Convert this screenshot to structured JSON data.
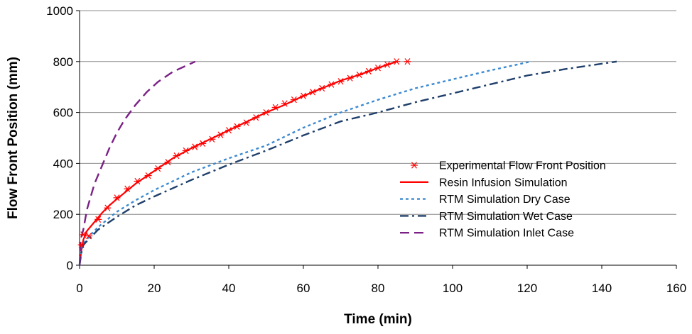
{
  "chart_data": {
    "type": "line",
    "xlabel": "Time (min)",
    "ylabel": "Flow Front Position (mm)",
    "xlim": [
      0,
      160
    ],
    "ylim": [
      0,
      1000
    ],
    "x_ticks": [
      0,
      20,
      40,
      60,
      80,
      100,
      120,
      140,
      160
    ],
    "y_ticks": [
      0,
      200,
      400,
      600,
      800,
      1000
    ],
    "y_grid": true,
    "legend_position": "right",
    "series": [
      {
        "name": "Experimental Flow Front Position",
        "style": "markers",
        "marker": "asterisk",
        "color": "#ff0000",
        "points": [
          [
            0.5,
            80
          ],
          [
            1.0,
            120
          ],
          [
            2.5,
            115
          ],
          [
            5.0,
            180
          ],
          [
            7.5,
            225
          ],
          [
            10.0,
            265
          ],
          [
            12.8,
            300
          ],
          [
            15.5,
            330
          ],
          [
            18.4,
            352
          ],
          [
            21.0,
            380
          ],
          [
            23.7,
            405
          ],
          [
            26.0,
            430
          ],
          [
            28.5,
            450
          ],
          [
            30.9,
            465
          ],
          [
            33.0,
            478
          ],
          [
            35.5,
            495
          ],
          [
            37.8,
            512
          ],
          [
            40.0,
            530
          ],
          [
            42.2,
            545
          ],
          [
            44.7,
            560
          ],
          [
            47.3,
            580
          ],
          [
            50.0,
            600
          ],
          [
            52.5,
            620
          ],
          [
            55.0,
            635
          ],
          [
            57.5,
            650
          ],
          [
            60.0,
            665
          ],
          [
            62.5,
            680
          ],
          [
            65.0,
            695
          ],
          [
            67.5,
            710
          ],
          [
            70.0,
            722
          ],
          [
            72.5,
            735
          ],
          [
            75.0,
            748
          ],
          [
            77.5,
            762
          ],
          [
            80.0,
            775
          ],
          [
            82.5,
            788
          ],
          [
            85.0,
            800
          ],
          [
            87.9,
            800
          ]
        ]
      },
      {
        "name": "Resin Infusion Simulation",
        "style": "solid",
        "color": "#ff0000",
        "points": [
          [
            0,
            0
          ],
          [
            0.5,
            60
          ],
          [
            1,
            100
          ],
          [
            2,
            135
          ],
          [
            4,
            170
          ],
          [
            6,
            205
          ],
          [
            8,
            235
          ],
          [
            10,
            260
          ],
          [
            15,
            320
          ],
          [
            20,
            370
          ],
          [
            25,
            420
          ],
          [
            30,
            460
          ],
          [
            35,
            495
          ],
          [
            40,
            530
          ],
          [
            45,
            565
          ],
          [
            50,
            600
          ],
          [
            55,
            630
          ],
          [
            60,
            665
          ],
          [
            65,
            695
          ],
          [
            70,
            725
          ],
          [
            75,
            748
          ],
          [
            80,
            775
          ],
          [
            85,
            800
          ]
        ]
      },
      {
        "name": "RTM Simulation Dry Case",
        "style": "dotted",
        "color": "#3c8ad0",
        "points": [
          [
            0,
            0
          ],
          [
            0.5,
            55
          ],
          [
            1,
            85
          ],
          [
            3,
            120
          ],
          [
            5,
            150
          ],
          [
            10,
            210
          ],
          [
            15,
            255
          ],
          [
            20,
            295
          ],
          [
            30,
            365
          ],
          [
            40,
            420
          ],
          [
            50,
            470
          ],
          [
            60,
            540
          ],
          [
            70,
            600
          ],
          [
            80,
            650
          ],
          [
            90,
            695
          ],
          [
            100,
            730
          ],
          [
            110,
            765
          ],
          [
            121,
            800
          ]
        ]
      },
      {
        "name": "RTM Simulation Wet Case",
        "style": "dashdot",
        "color": "#1f3f6a",
        "points": [
          [
            0,
            0
          ],
          [
            0.5,
            50
          ],
          [
            1,
            80
          ],
          [
            3,
            110
          ],
          [
            5,
            140
          ],
          [
            10,
            190
          ],
          [
            15,
            235
          ],
          [
            20,
            270
          ],
          [
            30,
            335
          ],
          [
            40,
            395
          ],
          [
            50,
            450
          ],
          [
            60,
            510
          ],
          [
            70,
            565
          ],
          [
            80,
            600
          ],
          [
            90,
            640
          ],
          [
            100,
            675
          ],
          [
            110,
            710
          ],
          [
            120,
            745
          ],
          [
            130,
            770
          ],
          [
            144,
            800
          ]
        ]
      },
      {
        "name": "RTM Simulation Inlet Case",
        "style": "dashed",
        "color": "#7b2186",
        "points": [
          [
            0,
            0
          ],
          [
            0.3,
            100
          ],
          [
            1,
            140
          ],
          [
            2,
            220
          ],
          [
            4,
            320
          ],
          [
            6,
            390
          ],
          [
            8,
            460
          ],
          [
            10,
            520
          ],
          [
            12,
            570
          ],
          [
            15,
            630
          ],
          [
            18,
            680
          ],
          [
            21,
            720
          ],
          [
            25,
            760
          ],
          [
            31,
            800
          ]
        ]
      }
    ]
  }
}
